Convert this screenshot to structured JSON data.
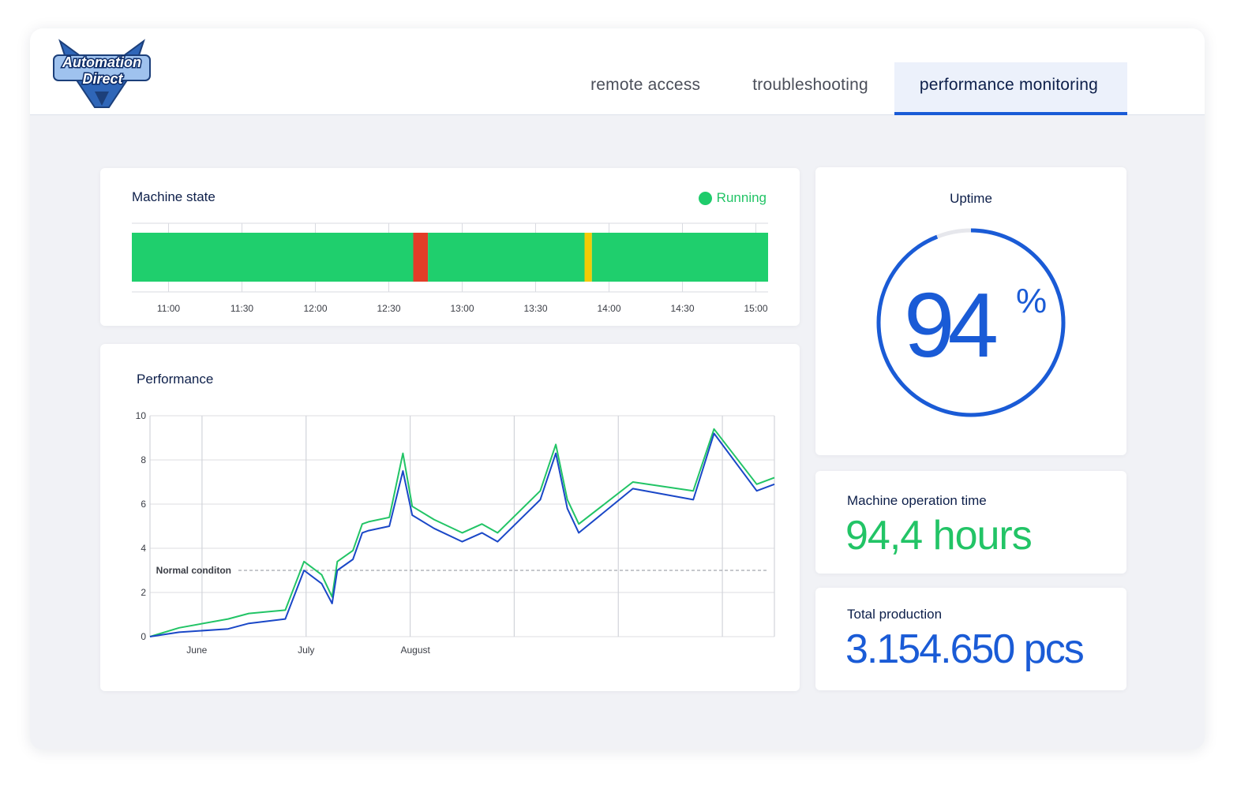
{
  "logo": {
    "line1": "Automation",
    "line2": "Direct"
  },
  "tabs": [
    {
      "label": "remote access",
      "active": false
    },
    {
      "label": "troubleshooting",
      "active": false
    },
    {
      "label": "performance monitoring",
      "active": true
    }
  ],
  "machine_state": {
    "title": "Machine state",
    "status": "Running",
    "times": [
      "11:00",
      "11:30",
      "12:00",
      "12:30",
      "13:00",
      "13:30",
      "14:00",
      "14:30",
      "15:00"
    ],
    "segments": [
      {
        "state": "running",
        "color": "#1fcf6d",
        "start": "10:45",
        "end": "12:40"
      },
      {
        "state": "stopped",
        "color": "#e23d28",
        "start": "12:40",
        "end": "12:46"
      },
      {
        "state": "running",
        "color": "#1fcf6d",
        "start": "12:46",
        "end": "13:50"
      },
      {
        "state": "warning",
        "color": "#f2cb05",
        "start": "13:50",
        "end": "13:53"
      },
      {
        "state": "running",
        "color": "#1fcf6d",
        "start": "13:53",
        "end": "15:05"
      }
    ],
    "range": [
      "10:45",
      "15:05"
    ]
  },
  "performance": {
    "title": "Performance",
    "normal_label": "Normal conditon"
  },
  "chart_data": {
    "type": "line",
    "title": "Performance",
    "xlabel": "",
    "ylabel": "",
    "x_tick_labels": [
      {
        "label": "June",
        "x": 0.95
      },
      {
        "label": "July",
        "x": 2
      },
      {
        "label": "August",
        "x": 3.05
      }
    ],
    "xlim": [
      0.5,
      6.5
    ],
    "ylim": [
      0,
      10
    ],
    "yticks": [
      0,
      2,
      4,
      6,
      8,
      10
    ],
    "grid": true,
    "reference_line": {
      "label": "Normal conditon",
      "y": 3.0
    },
    "series": [
      {
        "color": "#22c466",
        "x": [
          0.5,
          0.78,
          1.25,
          1.45,
          1.8,
          1.98,
          2.15,
          2.25,
          2.3,
          2.45,
          2.54,
          2.6,
          2.8,
          2.93,
          3.02,
          3.23,
          3.5,
          3.69,
          3.84,
          4.25,
          4.4,
          4.51,
          4.62,
          5.14,
          5.72,
          5.92,
          6.33,
          6.5
        ],
        "y": [
          0,
          0.4,
          0.8,
          1.05,
          1.2,
          3.4,
          2.8,
          1.8,
          3.4,
          3.9,
          5.1,
          5.2,
          5.4,
          8.3,
          5.9,
          5.3,
          4.7,
          5.1,
          4.7,
          6.6,
          8.7,
          6.2,
          5.1,
          7.0,
          6.6,
          9.4,
          6.9,
          7.2
        ]
      },
      {
        "color": "#1a47c7",
        "x": [
          0.5,
          0.78,
          1.25,
          1.45,
          1.8,
          1.98,
          2.15,
          2.25,
          2.3,
          2.45,
          2.54,
          2.6,
          2.8,
          2.93,
          3.02,
          3.23,
          3.5,
          3.69,
          3.84,
          4.25,
          4.4,
          4.51,
          4.62,
          5.14,
          5.72,
          5.92,
          6.33,
          6.5
        ],
        "y": [
          0,
          0.2,
          0.35,
          0.6,
          0.8,
          3.0,
          2.4,
          1.5,
          3.0,
          3.5,
          4.7,
          4.8,
          5.0,
          7.5,
          5.5,
          4.9,
          4.3,
          4.7,
          4.3,
          6.2,
          8.3,
          5.8,
          4.7,
          6.7,
          6.2,
          9.2,
          6.6,
          6.9
        ]
      }
    ]
  },
  "uptime": {
    "title": "Uptime",
    "value": "94",
    "unit": "%",
    "fraction": 0.94
  },
  "operation_time": {
    "title": "Machine operation time",
    "value": "94,4 hours"
  },
  "total_production": {
    "title": "Total production",
    "value": "3.154.650 pcs"
  }
}
